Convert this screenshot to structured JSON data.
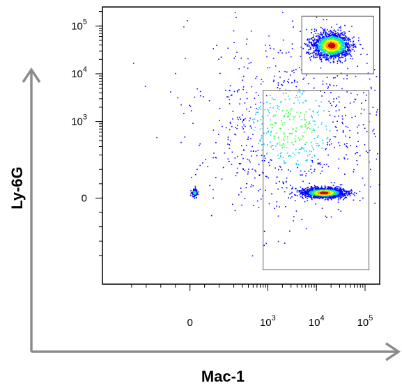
{
  "chart_data": {
    "type": "scatter",
    "subtype": "flow-cytometry-density-dot-plot",
    "title": "",
    "xlabel": "Mac-1",
    "ylabel": "Ly-6G",
    "x_scale": "biexponential",
    "y_scale": "biexponential",
    "xlim": [
      -300,
      200000
    ],
    "ylim": [
      -300,
      250000
    ],
    "x_ticks": [
      {
        "value": 0,
        "base": "0",
        "exp": ""
      },
      {
        "value": 1000,
        "base": "10",
        "exp": "3"
      },
      {
        "value": 10000,
        "base": "10",
        "exp": "4"
      },
      {
        "value": 100000,
        "base": "10",
        "exp": "5"
      }
    ],
    "y_ticks": [
      {
        "value": 0,
        "base": "0",
        "exp": ""
      },
      {
        "value": 1000,
        "base": "10",
        "exp": "3"
      },
      {
        "value": 10000,
        "base": "10",
        "exp": "4"
      },
      {
        "value": 100000,
        "base": "10",
        "exp": "5"
      }
    ],
    "grid": false,
    "legend": "none",
    "density_colors": [
      "#0000ff",
      "#00c8ff",
      "#33ff33",
      "#ffff00",
      "#ff9900",
      "#cc0000"
    ],
    "populations": [
      {
        "x_center": 20000,
        "y_center": 40000,
        "x_spread": 0.2,
        "y_spread": 0.14,
        "events": 1500
      },
      {
        "x_center": 14000,
        "y_center": 20,
        "x_spread": 0.22,
        "y_spread": 0.05,
        "events": 1600
      },
      {
        "x_center": 15,
        "y_center": 20,
        "x_spread": 0.03,
        "y_spread": 0.04,
        "events": 120
      },
      {
        "x_center": 3000,
        "y_center": 800,
        "x_spread": 0.9,
        "y_spread": 0.9,
        "events": 900
      }
    ],
    "gates": [
      {
        "x_min": 5000,
        "x_max": 150000,
        "y_min": 10000,
        "y_max": 160000
      },
      {
        "x_min": 800,
        "x_max": 120000,
        "y_min": -250,
        "y_max": 4500
      }
    ]
  }
}
